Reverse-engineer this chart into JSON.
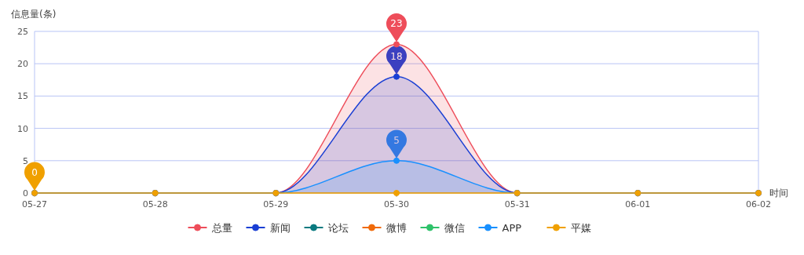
{
  "chart_data": {
    "type": "area",
    "xlabel": "时间",
    "ylabel": "信息量(条)",
    "categories": [
      "05-27",
      "05-28",
      "05-29",
      "05-30",
      "05-31",
      "06-01",
      "06-02"
    ],
    "series": [
      {
        "name": "总量",
        "color": "#ee4d5a",
        "values": [
          0,
          0,
          0,
          23,
          0,
          0,
          0
        ],
        "value_labels": [
          null,
          null,
          null,
          "23",
          null,
          null,
          null
        ]
      },
      {
        "name": "新闻",
        "color": "#1a3fd4",
        "values": [
          0,
          0,
          0,
          18,
          0,
          0,
          0
        ],
        "value_labels": [
          null,
          null,
          null,
          "18",
          null,
          null,
          null
        ]
      },
      {
        "name": "论坛",
        "type": "line",
        "color": "#0a7a80",
        "values": [
          null,
          null,
          null,
          null,
          null,
          null,
          null
        ]
      },
      {
        "name": "微博",
        "type": "line",
        "color": "#f06a0a",
        "values": [
          null,
          null,
          null,
          null,
          null,
          null,
          null
        ]
      },
      {
        "name": "微信",
        "type": "line",
        "color": "#2ec26a",
        "values": [
          null,
          null,
          null,
          null,
          null,
          null,
          null
        ]
      },
      {
        "name": "APP",
        "color": "#1890ff",
        "values": [
          0,
          0,
          0,
          5,
          0,
          0,
          0
        ],
        "value_labels": [
          null,
          null,
          null,
          "5",
          null,
          null,
          null
        ]
      },
      {
        "name": "平媒",
        "type": "line",
        "color": "#f0a000",
        "values": [
          0,
          0,
          0,
          0,
          0,
          0,
          0
        ],
        "value_labels": [
          "0",
          null,
          null,
          null,
          null,
          null,
          null
        ]
      }
    ],
    "ylim": [
      0,
      25
    ],
    "yticks": [
      0,
      5,
      10,
      15,
      20,
      25
    ],
    "grid": "y",
    "legend": "bottom",
    "marker": "circle",
    "line_style": "solid"
  }
}
